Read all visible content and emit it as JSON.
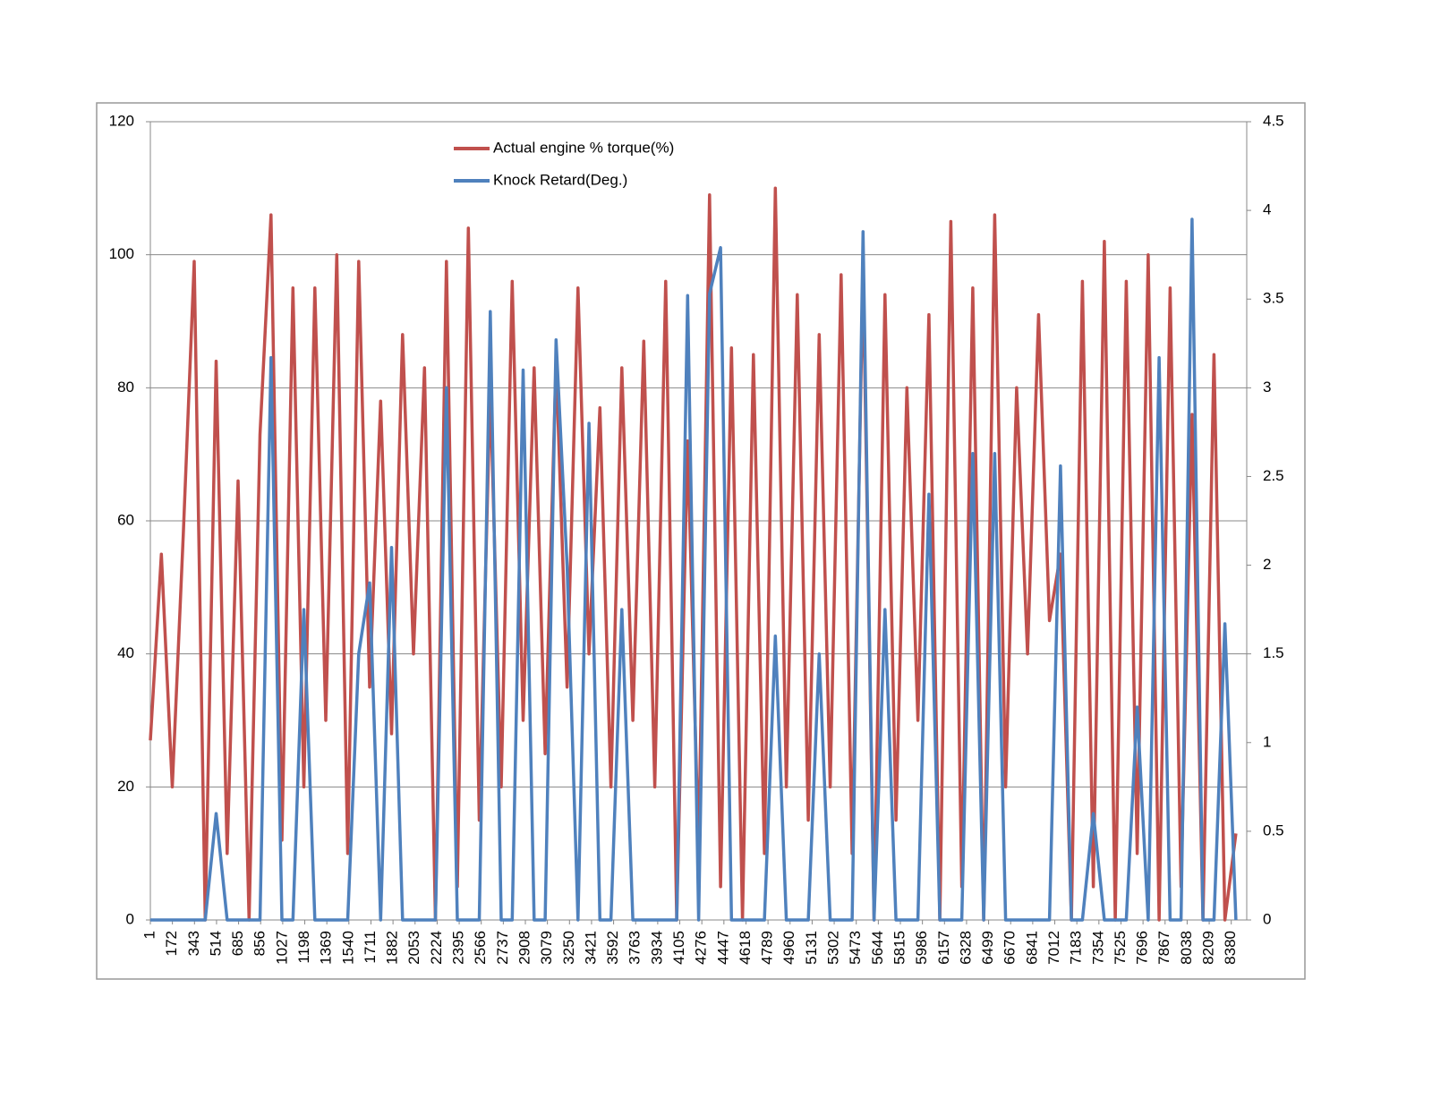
{
  "chart_data": {
    "type": "line",
    "x": [
      1,
      86,
      171,
      256,
      341,
      426,
      511,
      596,
      681,
      766,
      851,
      936,
      1021,
      1106,
      1191,
      1276,
      1361,
      1446,
      1531,
      1616,
      1701,
      1786,
      1871,
      1956,
      2041,
      2126,
      2211,
      2296,
      2381,
      2466,
      2551,
      2636,
      2721,
      2806,
      2891,
      2976,
      3061,
      3146,
      3231,
      3316,
      3401,
      3486,
      3571,
      3656,
      3741,
      3826,
      3911,
      3996,
      4081,
      4166,
      4251,
      4336,
      4421,
      4506,
      4591,
      4676,
      4761,
      4846,
      4931,
      5016,
      5101,
      5186,
      5271,
      5356,
      5441,
      5526,
      5611,
      5696,
      5781,
      5866,
      5951,
      6036,
      6121,
      6206,
      6291,
      6376,
      6461,
      6546,
      6631,
      6716,
      6801,
      6886,
      6971,
      7056,
      7141,
      7226,
      7311,
      7396,
      7481,
      7566,
      7651,
      7736,
      7821,
      7906,
      7991,
      8076,
      8161,
      8246,
      8331,
      8416
    ],
    "series": [
      {
        "name": "Actual engine % torque(%)",
        "color": "#c0504d",
        "values": [
          27,
          55,
          20,
          58,
          99,
          0,
          84,
          10,
          66,
          0,
          73,
          106,
          12,
          95,
          20,
          95,
          30,
          100,
          10,
          99,
          35,
          78,
          28,
          88,
          40,
          83,
          0,
          99,
          5,
          104,
          15,
          80,
          20,
          96,
          30,
          83,
          25,
          84,
          35,
          95,
          40,
          77,
          20,
          83,
          30,
          87,
          20,
          96,
          0,
          72,
          10,
          109,
          5,
          86,
          0,
          85,
          10,
          110,
          20,
          94,
          15,
          88,
          20,
          97,
          10,
          98,
          0,
          94,
          15,
          80,
          30,
          91,
          0,
          105,
          5,
          95,
          0,
          106,
          20,
          80,
          40,
          91,
          45,
          55,
          0,
          96,
          5,
          102,
          0,
          96,
          10,
          100,
          0,
          95,
          5,
          76,
          0,
          85,
          0,
          13
        ]
      },
      {
        "name": "Knock Retard(Deg.)",
        "color": "#4f81bd",
        "axis": "y2",
        "values": [
          0,
          0,
          0,
          0,
          0,
          0,
          0.6,
          0,
          0,
          0,
          0,
          3.17,
          0,
          0,
          1.75,
          0,
          0,
          0,
          0,
          1.5,
          1.9,
          0,
          2.1,
          0,
          0,
          0,
          0,
          3.0,
          0,
          0,
          0,
          3.43,
          0,
          0,
          3.1,
          0,
          0,
          3.27,
          2.0,
          0,
          2.8,
          0,
          0,
          1.75,
          0,
          0,
          0,
          0,
          0,
          3.52,
          0,
          3.53,
          3.79,
          0,
          0,
          0,
          0,
          1.6,
          0,
          0,
          0,
          1.5,
          0,
          0,
          0,
          3.88,
          0,
          1.75,
          0,
          0,
          0,
          2.4,
          0,
          0,
          0,
          2.63,
          0,
          2.63,
          0,
          0,
          0,
          0,
          0,
          2.56,
          0,
          0,
          0.6,
          0,
          0,
          0,
          1.2,
          0,
          3.17,
          0,
          0,
          3.95,
          0,
          0,
          1.67,
          0
        ]
      }
    ],
    "xlim": [
      1,
      8500
    ],
    "xticks": [
      1,
      172,
      343,
      514,
      685,
      856,
      1027,
      1198,
      1369,
      1540,
      1711,
      1882,
      2053,
      2224,
      2395,
      2566,
      2737,
      2908,
      3079,
      3250,
      3421,
      3592,
      3763,
      3934,
      4105,
      4276,
      4447,
      4618,
      4789,
      4960,
      5131,
      5302,
      5473,
      5644,
      5815,
      5986,
      6157,
      6328,
      6499,
      6670,
      6841,
      7012,
      7183,
      7354,
      7525,
      7696,
      7867,
      8038,
      8209,
      8380
    ],
    "ylim": [
      0,
      120
    ],
    "yticks": [
      0,
      20,
      40,
      60,
      80,
      100,
      120
    ],
    "y2lim": [
      0,
      4.5
    ],
    "y2ticks": [
      0,
      0.5,
      1,
      1.5,
      2,
      2.5,
      3,
      3.5,
      4,
      4.5
    ],
    "grid": true,
    "legend": "top"
  }
}
